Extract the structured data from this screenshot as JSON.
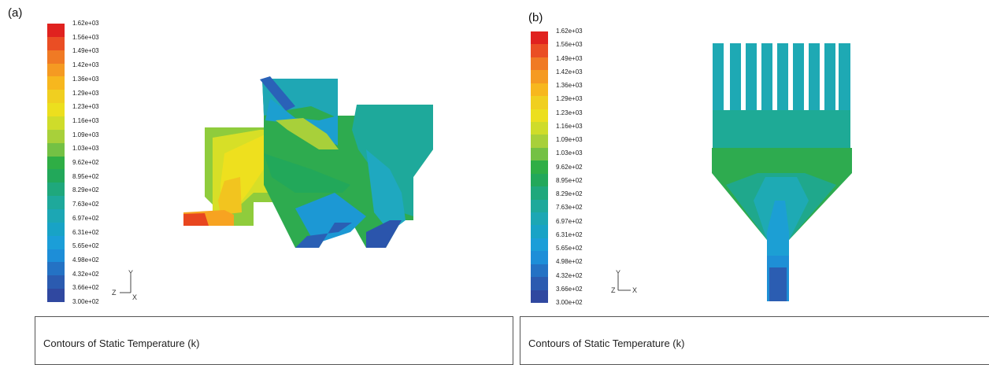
{
  "panels": [
    {
      "label": "(a)",
      "caption": "Contours of Static Temperature (k)",
      "axes": {
        "y": "Y",
        "z": "Z",
        "x": "X"
      },
      "colorbar_labels": [
        "1.62e+03",
        "1.56e+03",
        "1.49e+03",
        "1.42e+03",
        "1.36e+03",
        "1.29e+03",
        "1.23e+03",
        "1.16e+03",
        "1.09e+03",
        "1.03e+03",
        "9.62e+02",
        "8.95e+02",
        "8.29e+02",
        "7.63e+02",
        "6.97e+02",
        "6.31e+02",
        "5.65e+02",
        "4.98e+02",
        "4.32e+02",
        "3.66e+02",
        "3.00e+02"
      ]
    },
    {
      "label": "(b)",
      "caption": "Contours of Static Temperature (k)",
      "axes": {
        "y": "Y",
        "z": "Z",
        "x": "X"
      },
      "colorbar_labels": [
        "1.62e+03",
        "1.56e+03",
        "1.49e+03",
        "1.42e+03",
        "1.36e+03",
        "1.29e+03",
        "1.23e+03",
        "1.16e+03",
        "1.09e+03",
        "1.03e+03",
        "9.62e+02",
        "8.95e+02",
        "8.29e+02",
        "7.63e+02",
        "6.97e+02",
        "6.31e+02",
        "5.65e+02",
        "4.98e+02",
        "4.32e+02",
        "3.66e+02",
        "3.00e+02"
      ]
    }
  ],
  "colormap": [
    "#e0221f",
    "#ea4e24",
    "#f07a24",
    "#f59a22",
    "#f7b71e",
    "#f0cf20",
    "#ecdf1e",
    "#cfdc2a",
    "#a8d03a",
    "#74c144",
    "#2fae45",
    "#22a85a",
    "#1fa87c",
    "#1ea99b",
    "#1ca7b4",
    "#18a3c6",
    "#1b9ed8",
    "#1d8ed8",
    "#2472c4",
    "#2b5bb0",
    "#3048a0"
  ]
}
